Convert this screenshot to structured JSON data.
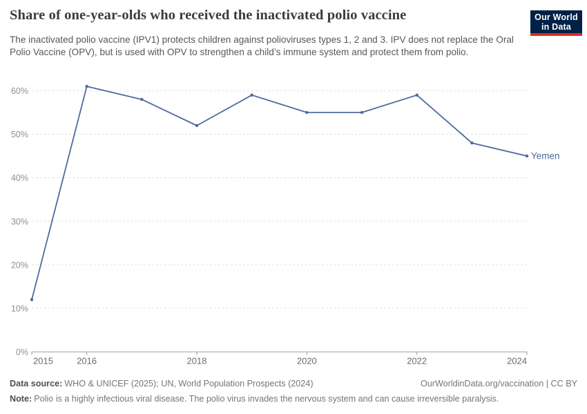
{
  "header": {
    "title": "Share of one-year-olds who received the inactivated polio vaccine",
    "subtitle": "The inactivated polio vaccine (IPV1) protects children against polioviruses types 1, 2 and 3. IPV does not replace the Oral Polio Vaccine (OPV), but is used with OPV to strengthen a child’s immune system and protect them from polio.",
    "logo": {
      "line1": "Our World",
      "line2": "in Data",
      "background_color": "#002147",
      "accent_color": "#dc2b1f"
    }
  },
  "chart_data": {
    "type": "line",
    "title": "Share of one-year-olds who received the inactivated polio vaccine",
    "xlabel": "",
    "ylabel": "",
    "unit": "%",
    "x": [
      2015,
      2016,
      2017,
      2018,
      2019,
      2020,
      2021,
      2022,
      2023,
      2024
    ],
    "series": [
      {
        "name": "Yemen",
        "color": "#4c6a9c",
        "values": [
          12,
          61,
          58,
          52,
          59,
          55,
          55,
          59,
          48,
          45
        ]
      }
    ],
    "end_label": "Yemen",
    "xlim": [
      2015,
      2024
    ],
    "ylim": [
      0,
      60
    ],
    "yticks": [
      0,
      10,
      20,
      30,
      40,
      50,
      60
    ],
    "ytick_suffix": "%",
    "xticks": [
      2015,
      2016,
      2018,
      2020,
      2022,
      2024
    ],
    "grid": "horizontal-dashed",
    "legend_position": "end-of-line"
  },
  "footer": {
    "datasource_label": "Data source:",
    "datasource": "WHO & UNICEF (2025); UN, World Population Prospects (2024)",
    "rights": "OurWorldinData.org/vaccination | CC BY",
    "note_label": "Note:",
    "note": "Polio is a highly infectious viral disease. The polio virus invades the nervous system and can cause irreversible paralysis."
  }
}
